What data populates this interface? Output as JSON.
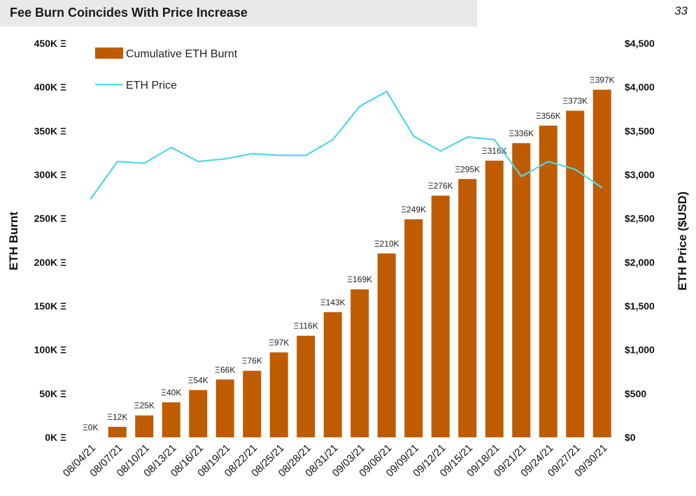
{
  "header": {
    "title": "Fee Burn Coincides With Price Increase",
    "page_number": "33"
  },
  "chart_data": {
    "type": "bar",
    "title": "Fee Burn Coincides With Price Increase",
    "categories": [
      "08/04/21",
      "08/07/21",
      "08/10/21",
      "08/13/21",
      "08/16/21",
      "08/19/21",
      "08/22/21",
      "08/25/21",
      "08/28/21",
      "08/31/21",
      "09/03/21",
      "09/06/21",
      "09/09/21",
      "09/12/21",
      "09/15/21",
      "09/18/21",
      "09/21/21",
      "09/24/21",
      "09/27/21",
      "09/30/21"
    ],
    "series": [
      {
        "name": "Cumulative ETH Burnt",
        "type": "bar",
        "axis": "left",
        "color": "#bf5b00",
        "values": [
          0,
          12,
          25,
          40,
          54,
          66,
          76,
          97,
          116,
          143,
          169,
          210,
          249,
          276,
          295,
          316,
          336,
          356,
          373,
          397
        ],
        "labels": [
          "Ξ0K",
          "Ξ12K",
          "Ξ25K",
          "Ξ40K",
          "Ξ54K",
          "Ξ66K",
          "Ξ76K",
          "Ξ97K",
          "Ξ116K",
          "Ξ143K",
          "Ξ169K",
          "Ξ210K",
          "Ξ249K",
          "Ξ276K",
          "Ξ295K",
          "Ξ316K",
          "Ξ336K",
          "Ξ356K",
          "Ξ373K",
          "Ξ397K"
        ]
      },
      {
        "name": "ETH Price",
        "type": "line",
        "axis": "right",
        "color": "#4dd8ea",
        "values": [
          2720,
          3150,
          3130,
          3310,
          3150,
          3180,
          3240,
          3220,
          3220,
          3400,
          3780,
          3950,
          3440,
          3270,
          3430,
          3400,
          2980,
          3150,
          3060,
          2850
        ]
      }
    ],
    "ylabel": "ETH Burnt",
    "y2label": "ETH Price ($USD)",
    "ylim": [
      0,
      450
    ],
    "y2lim": [
      0,
      4500
    ],
    "yticks": [
      "0K Ξ",
      "50K Ξ",
      "100K Ξ",
      "150K Ξ",
      "200K Ξ",
      "250K Ξ",
      "300K Ξ",
      "350K Ξ",
      "400K Ξ",
      "450K Ξ"
    ],
    "y2ticks": [
      "$0",
      "$500",
      "$1,000",
      "$1,500",
      "$2,000",
      "$2,500",
      "$3,000",
      "$3,500",
      "$4,000",
      "$4,500"
    ],
    "grid": false,
    "legend_position": "top-left"
  }
}
